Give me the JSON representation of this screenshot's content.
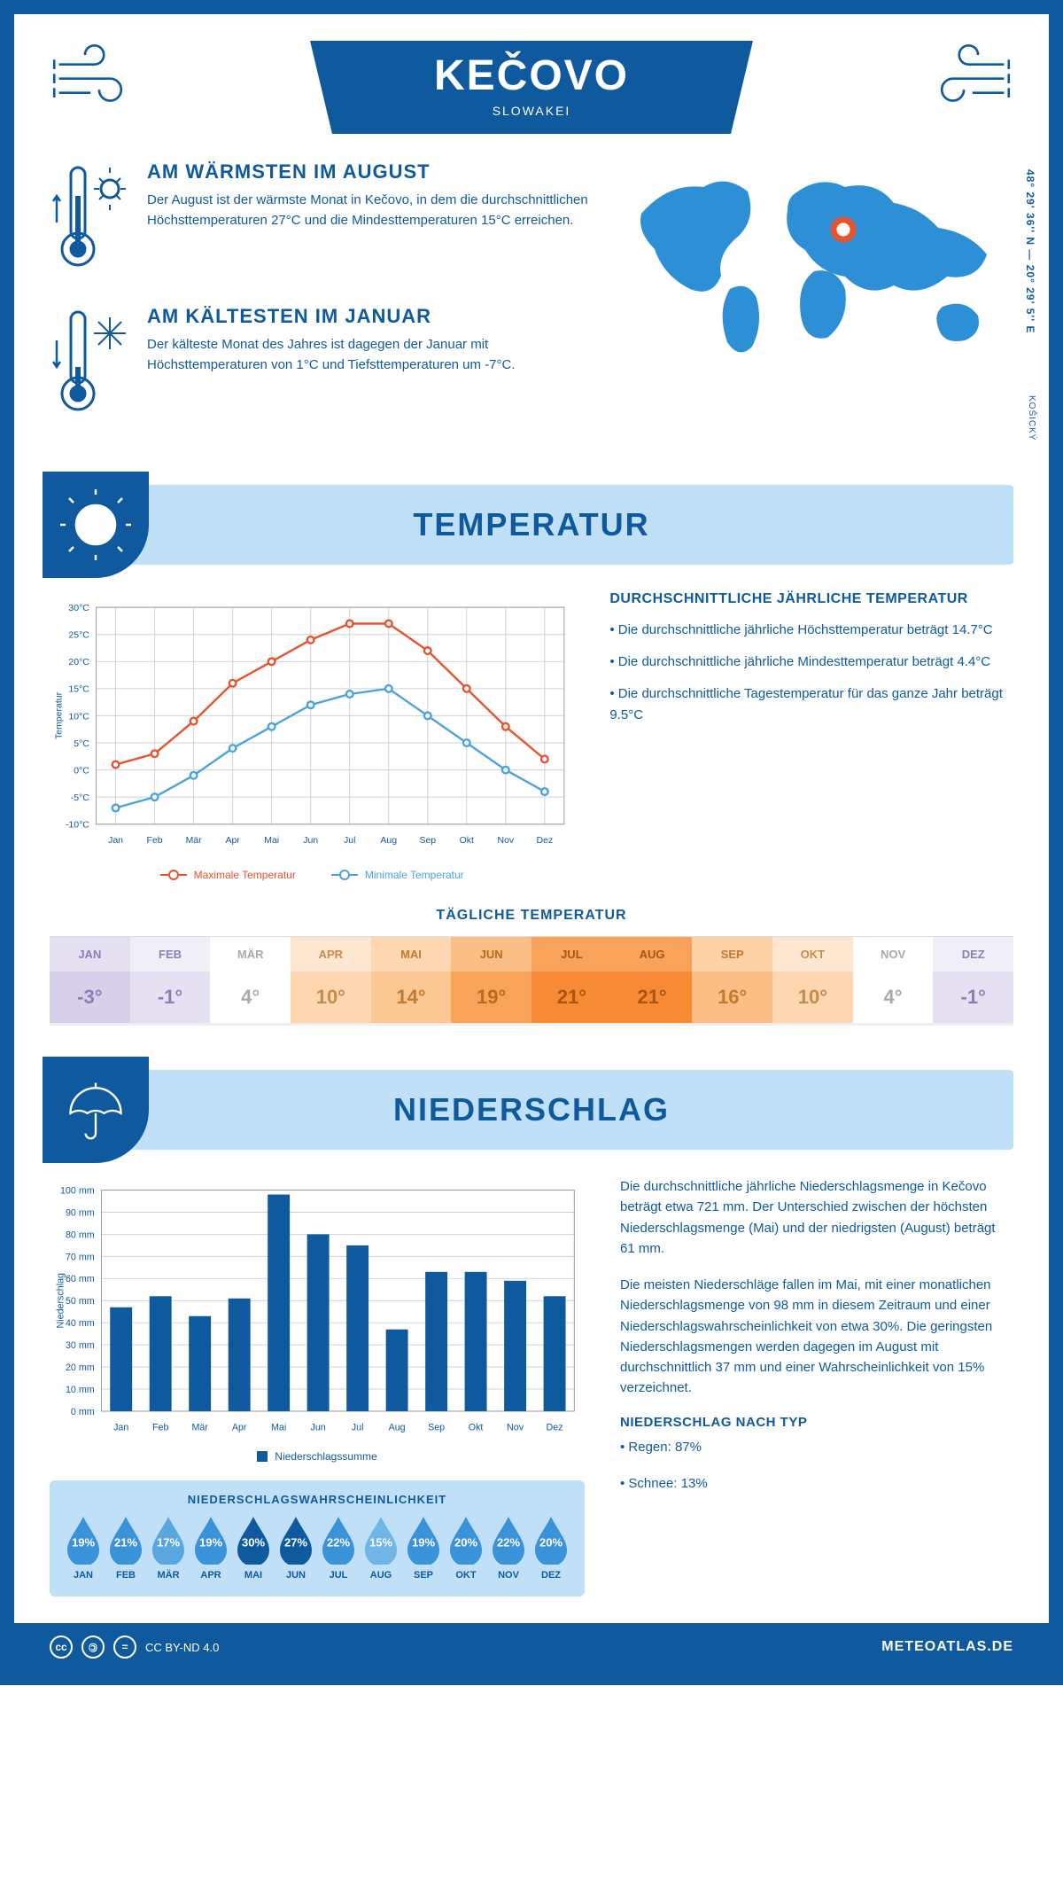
{
  "header": {
    "title": "KEČOVO",
    "subtitle": "SLOWAKEI"
  },
  "coords": "48° 29' 36'' N — 20° 29' 5'' E",
  "region": "KOŠICKÝ",
  "warm": {
    "heading": "AM WÄRMSTEN IM AUGUST",
    "text": "Der August ist der wärmste Monat in Kečovo, in dem die durchschnittlichen Höchsttemperaturen 27°C und die Mindesttemperaturen 15°C erreichen."
  },
  "cold": {
    "heading": "AM KÄLTESTEN IM JANUAR",
    "text": "Der kälteste Monat des Jahres ist dagegen der Januar mit Höchsttemperaturen von 1°C und Tiefsttemperaturen um -7°C."
  },
  "temp_section_title": "TEMPERATUR",
  "temp_chart": {
    "months": [
      "Jan",
      "Feb",
      "Mär",
      "Apr",
      "Mai",
      "Jun",
      "Jul",
      "Aug",
      "Sep",
      "Okt",
      "Nov",
      "Dez"
    ],
    "max": [
      1,
      3,
      9,
      16,
      20,
      24,
      27,
      27,
      22,
      15,
      8,
      2
    ],
    "min": [
      -7,
      -5,
      -1,
      4,
      8,
      12,
      14,
      15,
      10,
      5,
      0,
      -4
    ],
    "max_color": "#e8532f",
    "min_color": "#4aa3e0",
    "grid_color": "#d0d0d0",
    "ylim": [
      -10,
      30
    ],
    "ytick_step": 5,
    "y_axis_label": "Temperatur",
    "legend_max": "Maximale Temperatur",
    "legend_min": "Minimale Temperatur"
  },
  "temp_text": {
    "heading": "DURCHSCHNITTLICHE JÄHRLICHE TEMPERATUR",
    "b1": "• Die durchschnittliche jährliche Höchsttemperatur beträgt 14.7°C",
    "b2": "• Die durchschnittliche jährliche Mindesttemperatur beträgt 4.4°C",
    "b3": "• Die durchschnittliche Tagestemperatur für das ganze Jahr beträgt 9.5°C"
  },
  "daily": {
    "title": "TÄGLICHE TEMPERATUR",
    "months": [
      "JAN",
      "FEB",
      "MÄR",
      "APR",
      "MAI",
      "JUN",
      "JUL",
      "AUG",
      "SEP",
      "OKT",
      "NOV",
      "DEZ"
    ],
    "values": [
      "-3°",
      "-1°",
      "4°",
      "10°",
      "14°",
      "19°",
      "21°",
      "21°",
      "16°",
      "10°",
      "4°",
      "-1°"
    ],
    "head_colors": [
      "#e5e1f2",
      "#f0eef7",
      "#ffffff",
      "#fde7d1",
      "#fcd7b0",
      "#fbbf86",
      "#f9a35a",
      "#f9a35a",
      "#fcd2a6",
      "#fde7d1",
      "#ffffff",
      "#f0eef7"
    ],
    "val_colors": [
      "#d6d0ea",
      "#e5e1f2",
      "#ffffff",
      "#fcd7b0",
      "#fbc893",
      "#f9a35a",
      "#f78b34",
      "#f78b34",
      "#fbbf86",
      "#fcd7b0",
      "#ffffff",
      "#e5e1f2"
    ],
    "text_colors": [
      "#8b7fb5",
      "#8b7fb5",
      "#aaaaaa",
      "#c98b4a",
      "#c47a2f",
      "#b86a1f",
      "#a85510",
      "#a85510",
      "#c47a2f",
      "#c98b4a",
      "#aaaaaa",
      "#8b7fb5"
    ]
  },
  "precip_section_title": "NIEDERSCHLAG",
  "precip_chart": {
    "months": [
      "Jan",
      "Feb",
      "Mär",
      "Apr",
      "Mai",
      "Jun",
      "Jul",
      "Aug",
      "Sep",
      "Okt",
      "Nov",
      "Dez"
    ],
    "values": [
      47,
      52,
      43,
      51,
      98,
      80,
      75,
      37,
      63,
      63,
      59,
      52
    ],
    "bar_color": "#0f5a9e",
    "grid_color": "#d0d0d0",
    "ylim": [
      0,
      100
    ],
    "ytick_step": 10,
    "y_axis_label": "Niederschlag",
    "legend": "Niederschlagssumme"
  },
  "precip_text": {
    "p1": "Die durchschnittliche jährliche Niederschlagsmenge in Kečovo beträgt etwa 721 mm. Der Unterschied zwischen der höchsten Niederschlagsmenge (Mai) und der niedrigsten (August) beträgt 61 mm.",
    "p2": "Die meisten Niederschläge fallen im Mai, mit einer monatlichen Niederschlagsmenge von 98 mm in diesem Zeitraum und einer Niederschlagswahrscheinlichkeit von etwa 30%. Die geringsten Niederschlagsmengen werden dagegen im August mit durchschnittlich 37 mm und einer Wahrscheinlichkeit von 15% verzeichnet.",
    "type_heading": "NIEDERSCHLAG NACH TYP",
    "type_rain": "• Regen: 87%",
    "type_snow": "• Schnee: 13%"
  },
  "prob": {
    "title": "NIEDERSCHLAGSWAHRSCHEINLICHKEIT",
    "months": [
      "JAN",
      "FEB",
      "MÄR",
      "APR",
      "MAI",
      "JUN",
      "JUL",
      "AUG",
      "SEP",
      "OKT",
      "NOV",
      "DEZ"
    ],
    "values": [
      "19%",
      "21%",
      "17%",
      "19%",
      "30%",
      "27%",
      "22%",
      "15%",
      "19%",
      "20%",
      "22%",
      "20%"
    ],
    "colors": [
      "#3a93d8",
      "#3a93d8",
      "#5aa7df",
      "#3a93d8",
      "#0f5a9e",
      "#0f5a9e",
      "#3a93d8",
      "#6fb5e5",
      "#3a93d8",
      "#3a93d8",
      "#3a93d8",
      "#3a93d8"
    ]
  },
  "footer": {
    "license": "CC BY-ND 4.0",
    "site": "METEOATLAS.DE"
  }
}
